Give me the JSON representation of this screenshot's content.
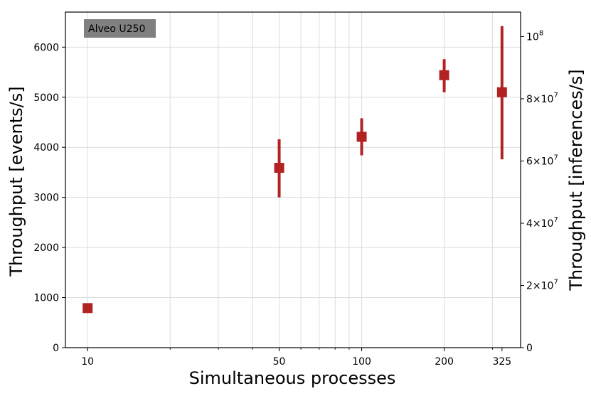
{
  "chart_data": {
    "type": "scatter",
    "badge": "Alveo U250",
    "xlabel": "Simultaneous processes",
    "ylabel": "Throughput [events/s]",
    "ylabel_right": "Throughput [inferences/s]",
    "x_scale": "log",
    "xlim": [
      8.3,
      380
    ],
    "ylim": [
      0,
      6700
    ],
    "x_ticks": [
      {
        "value": 10,
        "label": "10"
      },
      {
        "value": 50,
        "label": "50"
      },
      {
        "value": 100,
        "label": "100"
      },
      {
        "value": 200,
        "label": "200"
      },
      {
        "value": 325,
        "label": "325"
      }
    ],
    "y_ticks": [
      0,
      1000,
      2000,
      3000,
      4000,
      5000,
      6000
    ],
    "y_right_ticks": [
      {
        "value": 0,
        "label": "0"
      },
      {
        "value": 20000000,
        "label": "2×10",
        "exp": "7"
      },
      {
        "value": 40000000,
        "label": "4×10",
        "exp": "7"
      },
      {
        "value": 60000000,
        "label": "6×10",
        "exp": "7"
      },
      {
        "value": 80000000,
        "label": "8×10",
        "exp": "7"
      },
      {
        "value": 100000000,
        "label": "10",
        "exp": "8"
      }
    ],
    "y_right_per_left": 16100,
    "grid": true,
    "marker_color": "#b22222",
    "badge_color": "#808080",
    "points": [
      {
        "x": 10,
        "y": 790,
        "y_low": 790,
        "y_high": 790
      },
      {
        "x": 50,
        "y": 3590,
        "y_low": 3000,
        "y_high": 4160
      },
      {
        "x": 100,
        "y": 4210,
        "y_low": 3840,
        "y_high": 4580
      },
      {
        "x": 200,
        "y": 5440,
        "y_low": 5100,
        "y_high": 5760
      },
      {
        "x": 325,
        "y": 5100,
        "y_low": 3760,
        "y_high": 6420
      }
    ]
  }
}
